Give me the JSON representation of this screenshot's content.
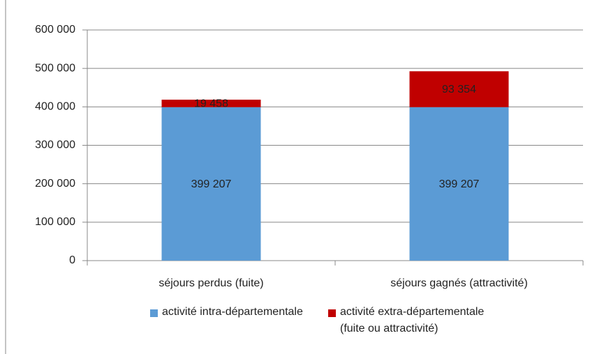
{
  "chart_data": {
    "type": "stacked_bar",
    "categories": [
      "séjours perdus (fuite)",
      "séjours gagnés (attractivité)"
    ],
    "series": [
      {
        "name": "activité intra-départementale",
        "color": "#5b9bd5",
        "values": [
          399207,
          399207
        ],
        "value_labels": [
          "399 207",
          "399 207"
        ]
      },
      {
        "name": "activité extra-départementale (fuite ou attractivité)",
        "color": "#c00000",
        "values": [
          19458,
          93354
        ],
        "value_labels": [
          "19 458",
          "93 354"
        ]
      }
    ],
    "ylim": [
      0,
      600000
    ],
    "yticks": [
      0,
      {
        "value": 100000,
        "label": "100 000"
      },
      {
        "value": 200000,
        "label": "200 000"
      },
      {
        "value": 300000,
        "label": "300 000"
      },
      {
        "value": 400000,
        "label": "400 000"
      },
      {
        "value": 500000,
        "label": "500 000"
      },
      {
        "value": 600000,
        "label": "600 000"
      }
    ],
    "grid": true,
    "legend": "bottom"
  }
}
